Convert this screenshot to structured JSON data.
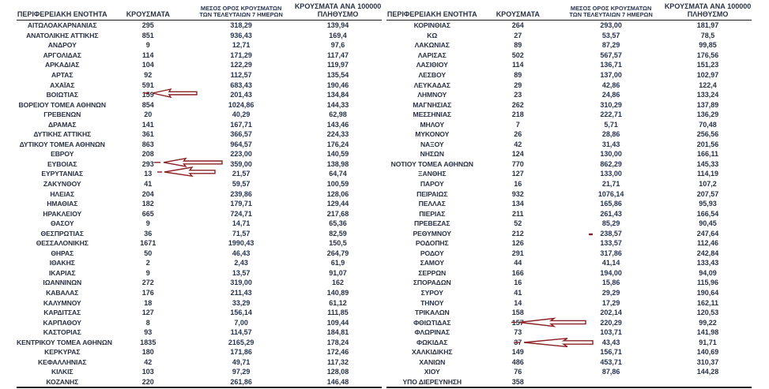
{
  "columns": {
    "region": "ΠΕΡΙΦΕΡΕΙΑΚΗ ΕΝΟΤΗΤΑ",
    "cases": "ΚΡΟΥΣΜΑΤΑ",
    "avg7_line1": "ΜΕΣΟΣ ΟΡΟΣ ΚΡΟΥΣΜΑΤΩΝ",
    "avg7_line2": "ΤΩΝ ΤΕΛΕΥΤΑΙΩΝ 7 ΗΜΕΡΩΝ",
    "per100k_line1": "ΚΡΟΥΣΜΑΤΑ ΑΝΑ 100000",
    "per100k_line2": "ΠΛΗΘΥΣΜΟ"
  },
  "left_table": {
    "rows": [
      [
        "ΑΙΤΩΛΟΑΚΑΡΝΑΝΙΑΣ",
        "295",
        "318,29",
        "139,94"
      ],
      [
        "ΑΝΑΤΟΛΙΚΗΣ ΑΤΤΙΚΗΣ",
        "851",
        "936,43",
        "169,4"
      ],
      [
        "ΑΝΔΡΟΥ",
        "9",
        "12,71",
        "97,6"
      ],
      [
        "ΑΡΓΟΛΙΔΑΣ",
        "114",
        "171,29",
        "117,47"
      ],
      [
        "ΑΡΚΑΔΙΑΣ",
        "104",
        "122,29",
        "119,97"
      ],
      [
        "ΑΡΤΑΣ",
        "92",
        "112,57",
        "135,54"
      ],
      [
        "ΑΧΑΪΑΣ",
        "591",
        "683,43",
        "190,46"
      ],
      [
        "ΒΟΙΩΤΙΑΣ",
        "159",
        "201,43",
        "134,84"
      ],
      [
        "ΒΟΡΕΙΟΥ ΤΟΜΕΑ ΑΘΗΝΩΝ",
        "854",
        "1024,86",
        "144,33"
      ],
      [
        "ΓΡΕΒΕΝΩΝ",
        "20",
        "40,29",
        "62,98"
      ],
      [
        "ΔΡΑΜΑΣ",
        "141",
        "167,71",
        "143,46"
      ],
      [
        "ΔΥΤΙΚΗΣ ΑΤΤΙΚΗΣ",
        "361",
        "366,57",
        "224,33"
      ],
      [
        "ΔΥΤΙΚΟΥ ΤΟΜΕΑ ΑΘΗΝΩΝ",
        "863",
        "964,57",
        "176,24"
      ],
      [
        "ΕΒΡΟΥ",
        "208",
        "223,00",
        "140,59"
      ],
      [
        "ΕΥΒΟΙΑΣ",
        "293",
        "359,00",
        "138,98"
      ],
      [
        "ΕΥΡΥΤΑΝΙΑΣ",
        "13",
        "21,57",
        "64,74"
      ],
      [
        "ΖΑΚΥΝΘΟΥ",
        "41",
        "59,57",
        "100,59"
      ],
      [
        "ΗΛΕΙΑΣ",
        "204",
        "239,86",
        "128,06"
      ],
      [
        "ΗΜΑΘΙΑΣ",
        "182",
        "179,71",
        "129,44"
      ],
      [
        "ΗΡΑΚΛΕΙΟΥ",
        "665",
        "724,71",
        "217,68"
      ],
      [
        "ΘΑΣΟΥ",
        "9",
        "14,71",
        "65,36"
      ],
      [
        "ΘΕΣΠΡΩΤΙΑΣ",
        "36",
        "71,57",
        "82,59"
      ],
      [
        "ΘΕΣΣΑΛΟΝΙΚΗΣ",
        "1671",
        "1990,43",
        "150,5"
      ],
      [
        "ΘΗΡΑΣ",
        "50",
        "46,43",
        "264,79"
      ],
      [
        "ΙΘΑΚΗΣ",
        "2",
        "2,43",
        "61,9"
      ],
      [
        "ΙΚΑΡΙΑΣ",
        "9",
        "13,57",
        "91,07"
      ],
      [
        "ΙΩΑΝΝΙΝΩΝ",
        "272",
        "319,00",
        "162"
      ],
      [
        "ΚΑΒΑΛΑΣ",
        "176",
        "211,43",
        "140,89"
      ],
      [
        "ΚΑΛΥΜΝΟΥ",
        "18",
        "33,29",
        "61,12"
      ],
      [
        "ΚΑΡΔΙΤΣΑΣ",
        "127",
        "156,14",
        "111,85"
      ],
      [
        "ΚΑΡΠΑΘΟΥ",
        "8",
        "7,00",
        "109,44"
      ],
      [
        "ΚΑΣΤΟΡΙΑΣ",
        "93",
        "114,57",
        "184,81"
      ],
      [
        "ΚΕΝΤΡΙΚΟΥ ΤΟΜΕΑ ΑΘΗΝΩΝ",
        "1835",
        "2165,29",
        "178,24"
      ],
      [
        "ΚΕΡΚΥΡΑΣ",
        "180",
        "171,86",
        "172,46"
      ],
      [
        "ΚΕΦΑΛΛΗΝΙΑΣ",
        "42",
        "49,71",
        "117,32"
      ],
      [
        "ΚΙΛΚΙΣ",
        "103",
        "97,29",
        "128,08"
      ],
      [
        "ΚΟΖΑΝΗΣ",
        "220",
        "261,86",
        "146,48"
      ]
    ]
  },
  "right_table": {
    "rows": [
      [
        "ΚΟΡΙΝΘΙΑΣ",
        "264",
        "293,00",
        "181,97"
      ],
      [
        "ΚΩ",
        "27",
        "53,57",
        "78,5"
      ],
      [
        "ΛΑΚΩΝΙΑΣ",
        "89",
        "87,29",
        "99,85"
      ],
      [
        "ΛΑΡΙΣΑΣ",
        "502",
        "567,57",
        "176,56"
      ],
      [
        "ΛΑΣΙΘΙΟΥ",
        "114",
        "136,71",
        "151,23"
      ],
      [
        "ΛΕΣΒΟΥ",
        "89",
        "137,00",
        "102,97"
      ],
      [
        "ΛΕΥΚΑΔΑΣ",
        "29",
        "42,86",
        "122,4"
      ],
      [
        "ΛΗΜΝΟΥ",
        "23",
        "24,86",
        "133,24"
      ],
      [
        "ΜΑΓΝΗΣΙΑΣ",
        "262",
        "310,29",
        "137,89"
      ],
      [
        "ΜΕΣΣΗΝΙΑΣ",
        "218",
        "222,71",
        "136,29"
      ],
      [
        "ΜΗΛΟΥ",
        "7",
        "5,71",
        "70,48"
      ],
      [
        "ΜΥΚΟΝΟΥ",
        "26",
        "28,86",
        "256,56"
      ],
      [
        "ΝΑΞΟΥ",
        "42",
        "31,43",
        "201,56"
      ],
      [
        "ΝΗΣΩΝ",
        "124",
        "130,00",
        "166,11"
      ],
      [
        "ΝΟΤΙΟΥ ΤΟΜΕΑ ΑΘΗΝΩΝ",
        "770",
        "862,29",
        "145,33"
      ],
      [
        "ΞΑΝΘΗΣ",
        "127",
        "133,00",
        "114,19"
      ],
      [
        "ΠΑΡΟΥ",
        "16",
        "21,71",
        "107,2"
      ],
      [
        "ΠΕΙΡΑΙΩΣ",
        "932",
        "1076,14",
        "207,57"
      ],
      [
        "ΠΕΛΛΑΣ",
        "134",
        "165,86",
        "95,93"
      ],
      [
        "ΠΙΕΡΙΑΣ",
        "211",
        "261,43",
        "166,54"
      ],
      [
        "ΠΡΕΒΕΖΑΣ",
        "52",
        "85,29",
        "90,45"
      ],
      [
        "ΡΕΘΥΜΝΟΥ",
        "212",
        "238,57",
        "247,64"
      ],
      [
        "ΡΟΔΟΠΗΣ",
        "126",
        "133,57",
        "112,46"
      ],
      [
        "ΡΟΔΟΥ",
        "291",
        "317,86",
        "242,84"
      ],
      [
        "ΣΑΜΟΥ",
        "44",
        "41,14",
        "133,43"
      ],
      [
        "ΣΕΡΡΩΝ",
        "166",
        "194,00",
        "94,09"
      ],
      [
        "ΣΠΟΡΑΔΩΝ",
        "16",
        "15,86",
        "115,96"
      ],
      [
        "ΣΥΡΟΥ",
        "41",
        "29,29",
        "190,64"
      ],
      [
        "ΤΗΝΟΥ",
        "14",
        "17,29",
        "162,11"
      ],
      [
        "ΤΡΙΚΑΛΩΝ",
        "158",
        "202,14",
        "120,53"
      ],
      [
        "ΦΘΙΩΤΙΔΑΣ",
        "157",
        "220,29",
        "99,22"
      ],
      [
        "ΦΛΩΡΙΝΑΣ",
        "73",
        "103,71",
        "141,98"
      ],
      [
        "ΦΩΚΙΔΑΣ",
        "37",
        "43,43",
        "91,71"
      ],
      [
        "ΧΑΛΚΙΔΙΚΗΣ",
        "149",
        "156,71",
        "140,69"
      ],
      [
        "ΧΑΝΙΩΝ",
        "486",
        "453,71",
        "310,37"
      ],
      [
        "ΧΙΟΥ",
        "76",
        "87,86",
        "144,28"
      ],
      [
        "ΥΠΟ ΔΙΕΡΕΥΝΗΣΗ",
        "358",
        "",
        ""
      ]
    ]
  },
  "annotations": {
    "color": "#8b2026",
    "arrows": [
      {
        "table": "left",
        "region": "ΒΟΙΩΤΙΑΣ",
        "points_at": "159"
      },
      {
        "table": "left",
        "region": "ΕΥΒΟΙΑΣ",
        "points_at": "293"
      },
      {
        "table": "left",
        "region": "ΕΥΡΥΤΑΝΙΑΣ",
        "points_at": "13"
      },
      {
        "table": "right",
        "region": "ΦΘΙΩΤΙΔΑΣ",
        "points_at": "157"
      },
      {
        "table": "right",
        "region": "ΦΩΚΙΔΑΣ",
        "points_at": "37"
      }
    ],
    "dash": {
      "table": "right",
      "region": "ΡΕΘΥΜΝΟΥ",
      "near_value": "238,57"
    }
  }
}
